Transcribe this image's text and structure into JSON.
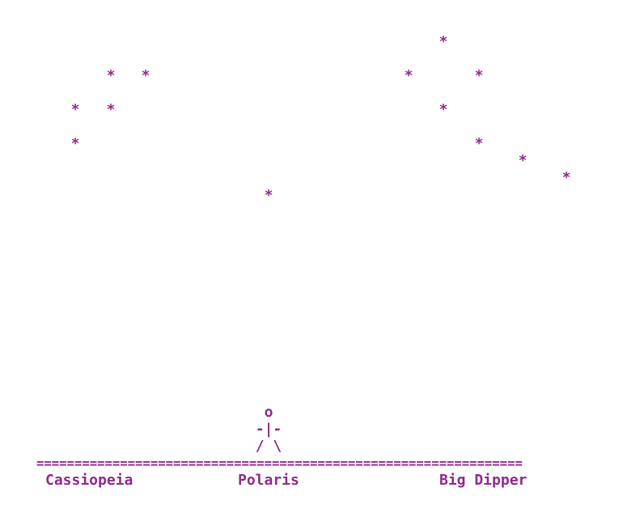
{
  "sky": {
    "stars": [
      "*",
      "*",
      "*",
      "*",
      "*",
      "*",
      "*",
      "*",
      "*",
      "*",
      "*",
      "*",
      "*"
    ]
  },
  "figure": {
    "head": "o",
    "body": "-|-",
    "legs": "/ \\"
  },
  "ground": "================================================================",
  "labels": [
    "Cassiopeia",
    "Polaris",
    "Big Dipper"
  ]
}
